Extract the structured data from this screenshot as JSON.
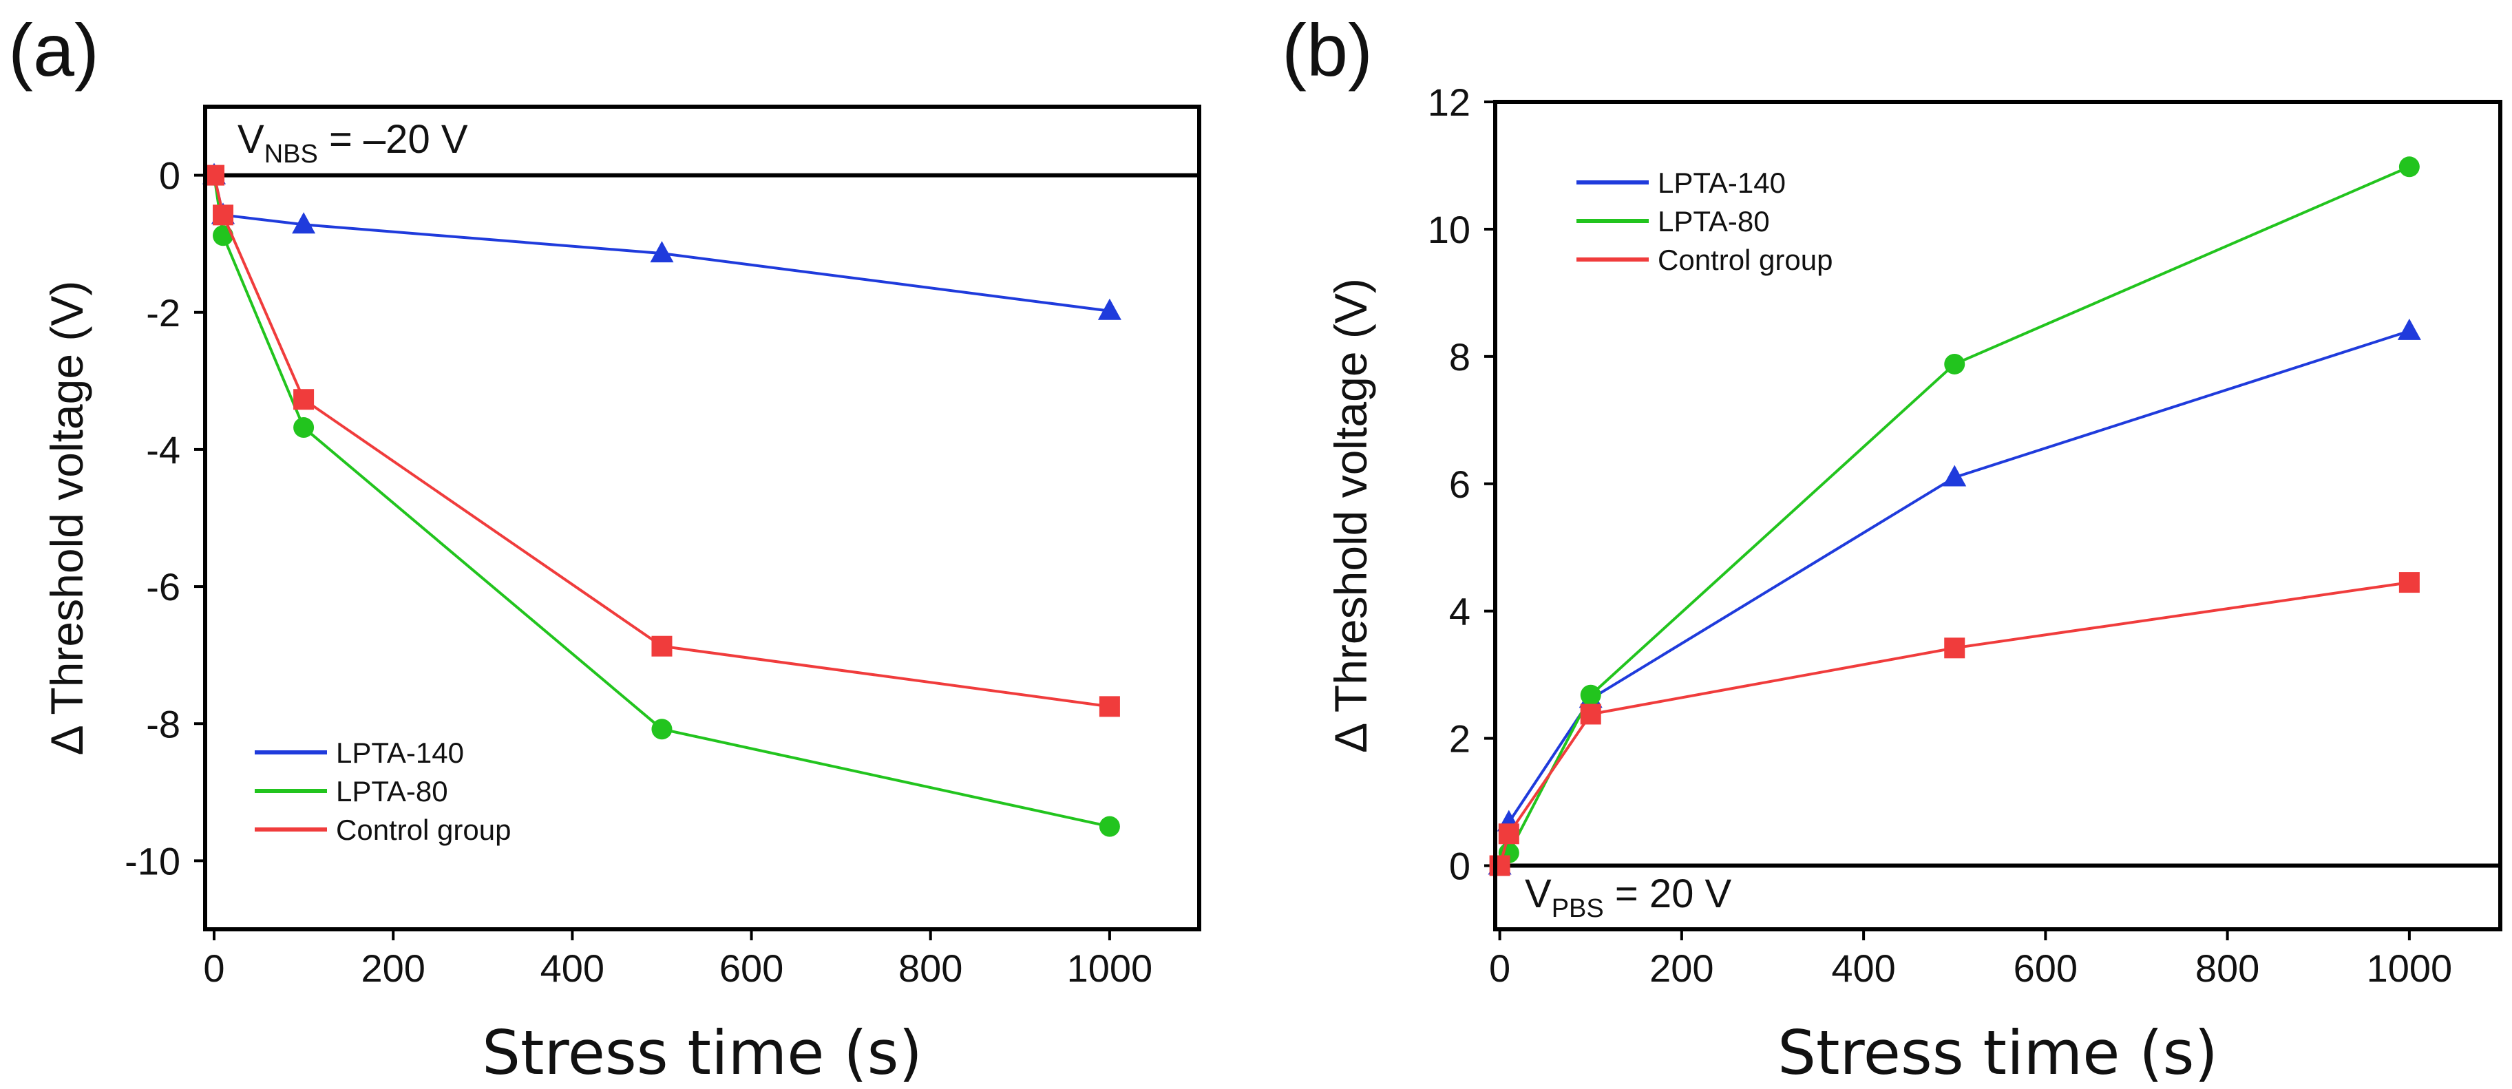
{
  "chart_data": [
    {
      "type": "line",
      "panel_label": "(a)",
      "xlabel": "Stress time (s)",
      "ylabel": "Δ Threshold voltage (V)",
      "xlim": [
        -10,
        1100
      ],
      "ylim": [
        -11,
        1
      ],
      "xticks": [
        0,
        200,
        400,
        600,
        800,
        1000
      ],
      "yticks": [
        -10,
        -8,
        -6,
        -4,
        -2,
        0
      ],
      "legend_position": "bottom-left",
      "annotation": {
        "main": "V",
        "sub": "NBS",
        "rest": " = –20 V"
      },
      "zero_line": true,
      "series": [
        {
          "name": "LPTA-140",
          "color": "#1f3bdc",
          "marker": "triangle",
          "x": [
            0,
            10,
            100,
            500,
            1000
          ],
          "y": [
            0,
            -0.58,
            -0.72,
            -1.14,
            -1.98
          ]
        },
        {
          "name": "LPTA-80",
          "color": "#22c41e",
          "marker": "circle",
          "x": [
            0,
            10,
            100,
            500,
            1000
          ],
          "y": [
            0,
            -0.88,
            -3.68,
            -8.08,
            -9.5
          ]
        },
        {
          "name": "Control group",
          "color": "#f03c3c",
          "marker": "square",
          "x": [
            0,
            10,
            100,
            500,
            1000
          ],
          "y": [
            0,
            -0.58,
            -3.27,
            -6.87,
            -7.75
          ]
        }
      ]
    },
    {
      "type": "line",
      "panel_label": "(b)",
      "xlabel": "Stress time (s)",
      "ylabel": "Δ Threshold voltage (V)",
      "xlim": [
        -5,
        1100
      ],
      "ylim": [
        -1,
        12
      ],
      "xticks": [
        0,
        200,
        400,
        600,
        800,
        1000
      ],
      "yticks": [
        0,
        2,
        4,
        6,
        8,
        10,
        12
      ],
      "legend_position": "top-left",
      "annotation": {
        "main": "V",
        "sub": "PBS",
        "rest": " = 20 V"
      },
      "zero_line": true,
      "series": [
        {
          "name": "LPTA-140",
          "color": "#1f3bdc",
          "marker": "triangle",
          "x": [
            0,
            10,
            100,
            500,
            1000
          ],
          "y": [
            0,
            0.68,
            2.62,
            6.1,
            8.4
          ]
        },
        {
          "name": "LPTA-80",
          "color": "#22c41e",
          "marker": "circle",
          "x": [
            0,
            10,
            100,
            500,
            1000
          ],
          "y": [
            0,
            0.2,
            2.68,
            7.88,
            10.98
          ]
        },
        {
          "name": "Control group",
          "color": "#f03c3c",
          "marker": "square",
          "x": [
            0,
            10,
            100,
            500,
            1000
          ],
          "y": [
            0,
            0.5,
            2.38,
            3.42,
            4.45
          ]
        }
      ]
    }
  ]
}
